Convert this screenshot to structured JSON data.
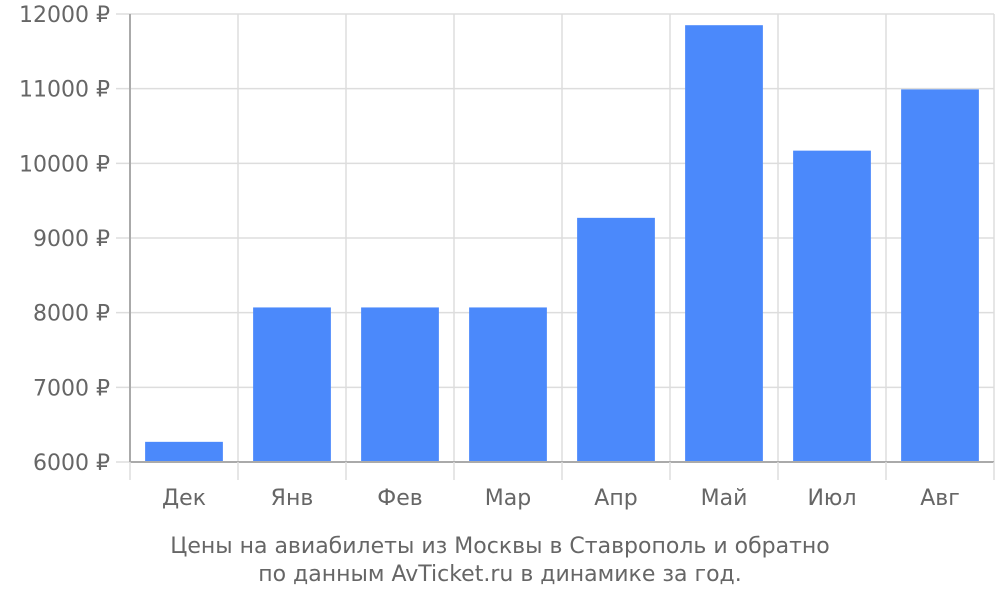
{
  "chart_data": {
    "type": "bar",
    "categories": [
      "Дек",
      "Янв",
      "Фев",
      "Мар",
      "Апр",
      "Май",
      "Июл",
      "Авг"
    ],
    "values": [
      6270,
      8070,
      8070,
      8070,
      9270,
      11850,
      10170,
      10990
    ],
    "ylim": [
      6000,
      12000
    ],
    "yticks": [
      6000,
      7000,
      8000,
      9000,
      10000,
      11000,
      12000
    ],
    "ytick_labels": [
      "6000 ₽",
      "7000 ₽",
      "8000 ₽",
      "9000 ₽",
      "10000 ₽",
      "11000 ₽",
      "12000 ₽"
    ],
    "caption": [
      "Цены на авиабилеты из Москвы в Ставрополь и обратно",
      "по данным AvTicket.ru в динамике за год."
    ],
    "grid": true,
    "legend": "none"
  },
  "colors": {
    "bar": "#4b89fb",
    "grid": "#dddddd",
    "axis": "#aaaaaa",
    "text": "#666666"
  }
}
